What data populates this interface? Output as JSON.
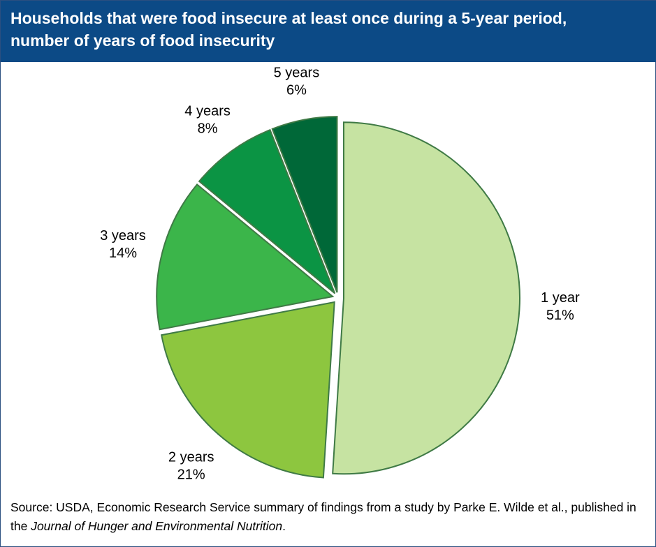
{
  "header": {
    "title_line1": "Households that were food insecure at least once during a 5-year period,",
    "title_line2": "number of years of food insecurity"
  },
  "chart_data": {
    "type": "pie",
    "categories": [
      "1 year",
      "2 years",
      "3 years",
      "4 years",
      "5 years"
    ],
    "values": [
      51,
      21,
      14,
      8,
      6
    ],
    "value_labels": [
      "51%",
      "21%",
      "14%",
      "8%",
      "6%"
    ],
    "colors": [
      "#c6e3a2",
      "#8dc63f",
      "#3bb54a",
      "#0b9444",
      "#006838"
    ],
    "start_angle_deg": 0,
    "direction": "clockwise",
    "exploded": true
  },
  "footer": {
    "source_prefix": "Source: USDA, Economic Research Service summary of findings from a study by Parke E. Wilde et al., published in the ",
    "source_journal": "Journal of Hunger and Environmental Nutrition",
    "source_suffix": "."
  }
}
